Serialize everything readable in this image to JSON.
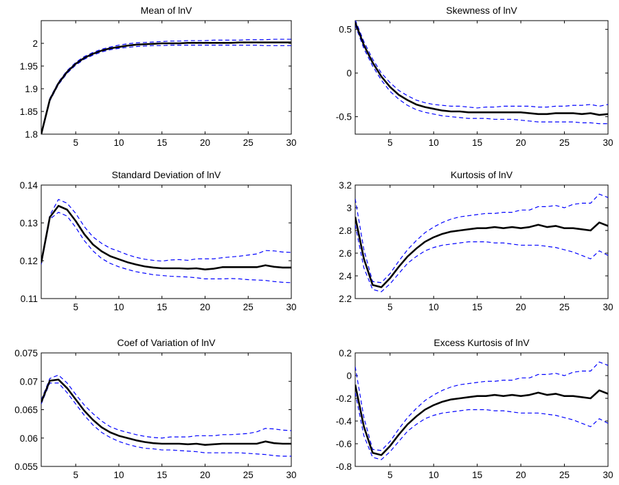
{
  "figure": {
    "colors": {
      "mean_line": "#000000",
      "band_line": "#0000ff",
      "axes": "#000000",
      "background": "#ffffff"
    }
  },
  "chart_data": [
    {
      "type": "line",
      "title": "Mean of lnV",
      "xlim": [
        1,
        30
      ],
      "ylim": [
        1.8,
        2.05
      ],
      "xticks": [
        5,
        10,
        15,
        20,
        25,
        30
      ],
      "yticks": [
        1.8,
        1.85,
        1.9,
        1.95,
        2
      ],
      "ytick_labels": [
        "1.8",
        "1.85",
        "1.9",
        "1.95",
        "2"
      ],
      "grid": false,
      "x": [
        1,
        2,
        3,
        4,
        5,
        6,
        7,
        8,
        9,
        10,
        11,
        12,
        13,
        14,
        15,
        16,
        17,
        18,
        19,
        20,
        21,
        22,
        23,
        24,
        25,
        26,
        27,
        28,
        29,
        30
      ],
      "series": [
        {
          "role": "mean",
          "style": "solid",
          "values": [
            1.8,
            1.876,
            1.912,
            1.937,
            1.955,
            1.968,
            1.977,
            1.984,
            1.989,
            1.992,
            1.995,
            1.997,
            1.998,
            1.999,
            2.0,
            2.0,
            2.0,
            2.001,
            2.001,
            2.001,
            2.001,
            2.001,
            2.001,
            2.002,
            2.002,
            2.002,
            2.002,
            2.002,
            2.002,
            2.002
          ]
        },
        {
          "role": "upper",
          "style": "dashed",
          "values": [
            1.803,
            1.879,
            1.915,
            1.94,
            1.958,
            1.971,
            1.98,
            1.987,
            1.992,
            1.996,
            1.999,
            2.001,
            2.002,
            2.003,
            2.004,
            2.005,
            2.005,
            2.006,
            2.006,
            2.006,
            2.007,
            2.007,
            2.007,
            2.007,
            2.008,
            2.008,
            2.008,
            2.009,
            2.009,
            2.009
          ]
        },
        {
          "role": "lower",
          "style": "dashed",
          "values": [
            1.797,
            1.873,
            1.909,
            1.934,
            1.952,
            1.965,
            1.974,
            1.981,
            1.986,
            1.989,
            1.991,
            1.993,
            1.994,
            1.995,
            1.995,
            1.996,
            1.996,
            1.996,
            1.996,
            1.996,
            1.996,
            1.996,
            1.996,
            1.996,
            1.996,
            1.996,
            1.995,
            1.995,
            1.995,
            1.995
          ]
        }
      ]
    },
    {
      "type": "line",
      "title": "Skewness of lnV",
      "xlim": [
        1,
        30
      ],
      "ylim": [
        -0.7,
        0.6
      ],
      "xticks": [
        5,
        10,
        15,
        20,
        25,
        30
      ],
      "yticks": [
        -0.5,
        0,
        0.5
      ],
      "ytick_labels": [
        "-0.5",
        "0",
        "0.5"
      ],
      "grid": false,
      "x": [
        1,
        2,
        3,
        4,
        5,
        6,
        7,
        8,
        9,
        10,
        11,
        12,
        13,
        14,
        15,
        16,
        17,
        18,
        19,
        20,
        21,
        22,
        23,
        24,
        25,
        26,
        27,
        28,
        29,
        30
      ],
      "series": [
        {
          "role": "mean",
          "style": "solid",
          "values": [
            0.58,
            0.32,
            0.12,
            -0.04,
            -0.16,
            -0.25,
            -0.31,
            -0.36,
            -0.39,
            -0.41,
            -0.43,
            -0.44,
            -0.44,
            -0.45,
            -0.45,
            -0.45,
            -0.45,
            -0.45,
            -0.45,
            -0.45,
            -0.46,
            -0.47,
            -0.47,
            -0.46,
            -0.46,
            -0.46,
            -0.47,
            -0.46,
            -0.48,
            -0.47
          ]
        },
        {
          "role": "upper",
          "style": "dashed",
          "values": [
            0.61,
            0.36,
            0.16,
            0.0,
            -0.11,
            -0.2,
            -0.26,
            -0.31,
            -0.34,
            -0.36,
            -0.37,
            -0.38,
            -0.38,
            -0.39,
            -0.4,
            -0.39,
            -0.39,
            -0.38,
            -0.38,
            -0.38,
            -0.38,
            -0.39,
            -0.39,
            -0.38,
            -0.38,
            -0.37,
            -0.37,
            -0.36,
            -0.38,
            -0.36
          ]
        },
        {
          "role": "lower",
          "style": "dashed",
          "values": [
            0.55,
            0.28,
            0.08,
            -0.08,
            -0.21,
            -0.3,
            -0.37,
            -0.42,
            -0.45,
            -0.47,
            -0.49,
            -0.5,
            -0.51,
            -0.52,
            -0.52,
            -0.52,
            -0.53,
            -0.53,
            -0.53,
            -0.54,
            -0.55,
            -0.56,
            -0.56,
            -0.56,
            -0.56,
            -0.56,
            -0.57,
            -0.57,
            -0.58,
            -0.58
          ]
        }
      ]
    },
    {
      "type": "line",
      "title": "Standard Deviation of lnV",
      "xlim": [
        1,
        30
      ],
      "ylim": [
        0.11,
        0.14
      ],
      "xticks": [
        5,
        10,
        15,
        20,
        25,
        30
      ],
      "yticks": [
        0.11,
        0.12,
        0.13,
        0.14
      ],
      "ytick_labels": [
        "0.11",
        "0.12",
        "0.13",
        "0.14"
      ],
      "grid": false,
      "x": [
        1,
        2,
        3,
        4,
        5,
        6,
        7,
        8,
        9,
        10,
        11,
        12,
        13,
        14,
        15,
        16,
        17,
        18,
        19,
        20,
        21,
        22,
        23,
        24,
        25,
        26,
        27,
        28,
        29,
        30
      ],
      "series": [
        {
          "role": "mean",
          "style": "solid",
          "values": [
            0.1195,
            0.1315,
            0.1345,
            0.1335,
            0.1305,
            0.127,
            0.1243,
            0.1225,
            0.1212,
            0.1204,
            0.1196,
            0.119,
            0.1185,
            0.1182,
            0.118,
            0.118,
            0.118,
            0.1179,
            0.118,
            0.1177,
            0.1179,
            0.1183,
            0.1183,
            0.1183,
            0.1183,
            0.1183,
            0.1188,
            0.1184,
            0.1182,
            0.1182
          ]
        },
        {
          "role": "upper",
          "style": "dashed",
          "values": [
            0.12,
            0.132,
            0.1362,
            0.1352,
            0.1325,
            0.129,
            0.1263,
            0.1246,
            0.1233,
            0.1225,
            0.1216,
            0.1209,
            0.1204,
            0.1201,
            0.1199,
            0.1202,
            0.1203,
            0.1201,
            0.1205,
            0.1205,
            0.1205,
            0.1208,
            0.121,
            0.1212,
            0.1215,
            0.1218,
            0.1227,
            0.1226,
            0.1223,
            0.1222
          ]
        },
        {
          "role": "lower",
          "style": "dashed",
          "values": [
            0.119,
            0.131,
            0.1328,
            0.1318,
            0.1288,
            0.1253,
            0.1226,
            0.1206,
            0.1193,
            0.1184,
            0.1177,
            0.1171,
            0.1167,
            0.1163,
            0.1161,
            0.1159,
            0.1158,
            0.1157,
            0.1155,
            0.1152,
            0.1152,
            0.1152,
            0.1153,
            0.1152,
            0.115,
            0.1149,
            0.1148,
            0.1145,
            0.1143,
            0.1142
          ]
        }
      ]
    },
    {
      "type": "line",
      "title": "Kurtosis of lnV",
      "xlim": [
        1,
        30
      ],
      "ylim": [
        2.2,
        3.2
      ],
      "xticks": [
        5,
        10,
        15,
        20,
        25,
        30
      ],
      "yticks": [
        2.2,
        2.4,
        2.6,
        2.8,
        3,
        3.2
      ],
      "ytick_labels": [
        "2.2",
        "2.4",
        "2.6",
        "2.8",
        "3",
        "3.2"
      ],
      "grid": false,
      "x": [
        1,
        2,
        3,
        4,
        5,
        6,
        7,
        8,
        9,
        10,
        11,
        12,
        13,
        14,
        15,
        16,
        17,
        18,
        19,
        20,
        21,
        22,
        23,
        24,
        25,
        26,
        27,
        28,
        29,
        30
      ],
      "series": [
        {
          "role": "mean",
          "style": "solid",
          "values": [
            2.92,
            2.55,
            2.32,
            2.3,
            2.38,
            2.48,
            2.57,
            2.64,
            2.7,
            2.74,
            2.77,
            2.79,
            2.8,
            2.81,
            2.82,
            2.82,
            2.83,
            2.82,
            2.83,
            2.82,
            2.83,
            2.85,
            2.83,
            2.84,
            2.82,
            2.82,
            2.81,
            2.8,
            2.87,
            2.84
          ]
        },
        {
          "role": "upper",
          "style": "dashed",
          "values": [
            3.08,
            2.63,
            2.35,
            2.34,
            2.42,
            2.53,
            2.63,
            2.71,
            2.78,
            2.83,
            2.87,
            2.9,
            2.92,
            2.93,
            2.94,
            2.95,
            2.95,
            2.96,
            2.96,
            2.98,
            2.98,
            3.01,
            3.01,
            3.02,
            3.0,
            3.03,
            3.04,
            3.04,
            3.12,
            3.09
          ]
        },
        {
          "role": "lower",
          "style": "dashed",
          "values": [
            2.85,
            2.47,
            2.28,
            2.26,
            2.33,
            2.42,
            2.51,
            2.57,
            2.62,
            2.65,
            2.67,
            2.68,
            2.69,
            2.7,
            2.7,
            2.7,
            2.69,
            2.69,
            2.68,
            2.67,
            2.67,
            2.67,
            2.66,
            2.65,
            2.63,
            2.61,
            2.58,
            2.55,
            2.62,
            2.58
          ]
        }
      ]
    },
    {
      "type": "line",
      "title": "Coef of Variation of lnV",
      "xlim": [
        1,
        30
      ],
      "ylim": [
        0.055,
        0.075
      ],
      "xticks": [
        5,
        10,
        15,
        20,
        25,
        30
      ],
      "yticks": [
        0.055,
        0.06,
        0.065,
        0.07,
        0.075
      ],
      "ytick_labels": [
        "0.055",
        "0.06",
        "0.065",
        "0.07",
        "0.075"
      ],
      "grid": false,
      "x": [
        1,
        2,
        3,
        4,
        5,
        6,
        7,
        8,
        9,
        10,
        11,
        12,
        13,
        14,
        15,
        16,
        17,
        18,
        19,
        20,
        21,
        22,
        23,
        24,
        25,
        26,
        27,
        28,
        29,
        30
      ],
      "series": [
        {
          "role": "mean",
          "style": "solid",
          "values": [
            0.0663,
            0.0701,
            0.0703,
            0.0688,
            0.0668,
            0.0648,
            0.0632,
            0.0619,
            0.061,
            0.0604,
            0.06,
            0.0596,
            0.0593,
            0.0591,
            0.059,
            0.059,
            0.059,
            0.0589,
            0.059,
            0.0588,
            0.0589,
            0.059,
            0.059,
            0.059,
            0.059,
            0.059,
            0.0594,
            0.0591,
            0.059,
            0.059
          ]
        },
        {
          "role": "upper",
          "style": "dashed",
          "values": [
            0.0667,
            0.0705,
            0.0711,
            0.0697,
            0.0677,
            0.0658,
            0.0643,
            0.063,
            0.062,
            0.0614,
            0.061,
            0.0606,
            0.0603,
            0.0601,
            0.06,
            0.0602,
            0.0602,
            0.0602,
            0.0604,
            0.0604,
            0.0604,
            0.0606,
            0.0606,
            0.0607,
            0.0608,
            0.0611,
            0.0617,
            0.0616,
            0.0614,
            0.0613
          ]
        },
        {
          "role": "lower",
          "style": "dashed",
          "values": [
            0.066,
            0.0697,
            0.0697,
            0.068,
            0.066,
            0.064,
            0.0623,
            0.061,
            0.0601,
            0.0594,
            0.0589,
            0.0585,
            0.0582,
            0.0581,
            0.0579,
            0.0579,
            0.0578,
            0.0577,
            0.0576,
            0.0574,
            0.0574,
            0.0574,
            0.0574,
            0.0574,
            0.0573,
            0.0572,
            0.0571,
            0.0569,
            0.0568,
            0.0568
          ]
        }
      ]
    },
    {
      "type": "line",
      "title": "Excess Kurtosis of lnV",
      "xlim": [
        1,
        30
      ],
      "ylim": [
        -0.8,
        0.2
      ],
      "xticks": [
        5,
        10,
        15,
        20,
        25,
        30
      ],
      "yticks": [
        -0.8,
        -0.6,
        -0.4,
        -0.2,
        0,
        0.2
      ],
      "ytick_labels": [
        "-0.8",
        "-0.6",
        "-0.4",
        "-0.2",
        "0",
        "0.2"
      ],
      "grid": false,
      "x": [
        1,
        2,
        3,
        4,
        5,
        6,
        7,
        8,
        9,
        10,
        11,
        12,
        13,
        14,
        15,
        16,
        17,
        18,
        19,
        20,
        21,
        22,
        23,
        24,
        25,
        26,
        27,
        28,
        29,
        30
      ],
      "series": [
        {
          "role": "mean",
          "style": "solid",
          "values": [
            -0.08,
            -0.45,
            -0.68,
            -0.7,
            -0.62,
            -0.52,
            -0.43,
            -0.36,
            -0.3,
            -0.26,
            -0.23,
            -0.21,
            -0.2,
            -0.19,
            -0.18,
            -0.18,
            -0.17,
            -0.18,
            -0.17,
            -0.18,
            -0.17,
            -0.15,
            -0.17,
            -0.16,
            -0.18,
            -0.18,
            -0.19,
            -0.2,
            -0.13,
            -0.16
          ]
        },
        {
          "role": "upper",
          "style": "dashed",
          "values": [
            0.08,
            -0.37,
            -0.65,
            -0.66,
            -0.58,
            -0.47,
            -0.37,
            -0.29,
            -0.22,
            -0.17,
            -0.13,
            -0.1,
            -0.08,
            -0.07,
            -0.06,
            -0.05,
            -0.05,
            -0.04,
            -0.04,
            -0.02,
            -0.02,
            0.01,
            0.01,
            0.02,
            0.0,
            0.03,
            0.04,
            0.04,
            0.12,
            0.09
          ]
        },
        {
          "role": "lower",
          "style": "dashed",
          "values": [
            -0.15,
            -0.53,
            -0.72,
            -0.74,
            -0.67,
            -0.58,
            -0.49,
            -0.43,
            -0.38,
            -0.35,
            -0.33,
            -0.32,
            -0.31,
            -0.3,
            -0.3,
            -0.3,
            -0.31,
            -0.31,
            -0.32,
            -0.33,
            -0.33,
            -0.33,
            -0.34,
            -0.35,
            -0.37,
            -0.39,
            -0.42,
            -0.45,
            -0.38,
            -0.42
          ]
        }
      ]
    }
  ]
}
